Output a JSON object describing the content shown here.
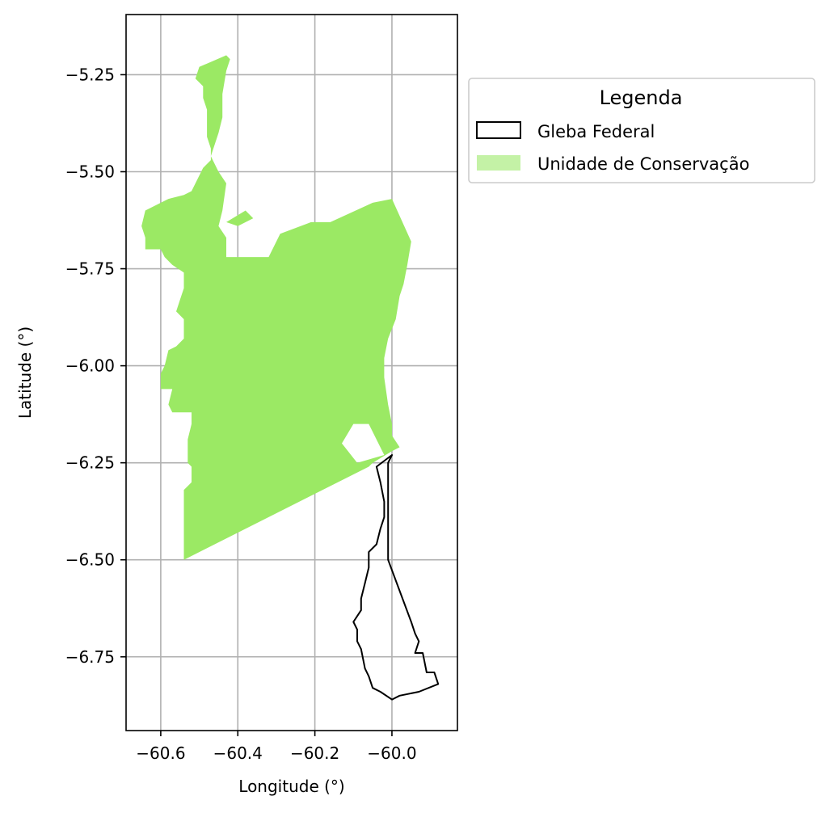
{
  "colors": {
    "uc_fill": "#9be964",
    "uc_legend_fill": "#c4f2a6",
    "gleba_stroke": "#000000",
    "grid": "#b0b0b0",
    "frame": "#000000",
    "legend_border": "#cccccc"
  },
  "chart_data": {
    "type": "map",
    "title": "",
    "xlabel": "Longitude (°)",
    "ylabel": "Latitude (°)",
    "xlim": [
      -60.69,
      -59.83
    ],
    "ylim": [
      -6.94,
      -5.095
    ],
    "grid": true,
    "x_ticks": [
      -60.6,
      -60.4,
      -60.2,
      -60.0
    ],
    "x_tick_labels": [
      "−60.6",
      "−60.4",
      "−60.2",
      "−60.0"
    ],
    "y_ticks": [
      -5.25,
      -5.5,
      -5.75,
      -6.0,
      -6.25,
      -6.5,
      -6.75
    ],
    "y_tick_labels": [
      "−5.25",
      "−5.50",
      "−5.75",
      "−6.00",
      "−6.25",
      "−6.50",
      "−6.75"
    ],
    "legend": {
      "title": "Legenda",
      "placement": "outside-upper-right",
      "entries": [
        {
          "label": "Gleba Federal",
          "style": "outline"
        },
        {
          "label": "Unidade de Conservação",
          "style": "fill"
        }
      ]
    },
    "layers": [
      {
        "name": "Unidade de Conservação",
        "style": "fill",
        "polygons": [
          [
            [
              -60.54,
              -6.5
            ],
            [
              -60.54,
              -6.32
            ],
            [
              -60.53,
              -6.31
            ],
            [
              -60.52,
              -6.3
            ],
            [
              -60.52,
              -6.26
            ],
            [
              -60.53,
              -6.25
            ],
            [
              -60.53,
              -6.19
            ],
            [
              -60.52,
              -6.15
            ],
            [
              -60.52,
              -6.12
            ],
            [
              -60.57,
              -6.12
            ],
            [
              -60.58,
              -6.1
            ],
            [
              -60.57,
              -6.06
            ],
            [
              -60.6,
              -6.06
            ],
            [
              -60.6,
              -6.02
            ],
            [
              -60.59,
              -6.0
            ],
            [
              -60.58,
              -5.96
            ],
            [
              -60.56,
              -5.95
            ],
            [
              -60.54,
              -5.93
            ],
            [
              -60.54,
              -5.88
            ],
            [
              -60.56,
              -5.86
            ],
            [
              -60.55,
              -5.83
            ],
            [
              -60.54,
              -5.8
            ],
            [
              -60.54,
              -5.76
            ],
            [
              -60.57,
              -5.74
            ],
            [
              -60.59,
              -5.72
            ],
            [
              -60.6,
              -5.7
            ],
            [
              -60.64,
              -5.7
            ],
            [
              -60.64,
              -5.67
            ],
            [
              -60.65,
              -5.64
            ],
            [
              -60.64,
              -5.6
            ],
            [
              -60.58,
              -5.57
            ],
            [
              -60.54,
              -5.56
            ],
            [
              -60.52,
              -5.55
            ],
            [
              -60.49,
              -5.49
            ],
            [
              -60.47,
              -5.47
            ],
            [
              -60.47,
              -5.44
            ],
            [
              -60.48,
              -5.41
            ],
            [
              -60.48,
              -5.38
            ],
            [
              -60.48,
              -5.34
            ],
            [
              -60.49,
              -5.31
            ],
            [
              -60.49,
              -5.28
            ],
            [
              -60.51,
              -5.26
            ],
            [
              -60.5,
              -5.23
            ],
            [
              -60.43,
              -5.2
            ],
            [
              -60.42,
              -5.21
            ],
            [
              -60.43,
              -5.24
            ],
            [
              -60.44,
              -5.3
            ],
            [
              -60.44,
              -5.36
            ],
            [
              -60.45,
              -5.4
            ],
            [
              -60.47,
              -5.46
            ],
            [
              -60.45,
              -5.5
            ],
            [
              -60.43,
              -5.53
            ],
            [
              -60.44,
              -5.6
            ],
            [
              -60.45,
              -5.64
            ],
            [
              -60.43,
              -5.67
            ],
            [
              -60.43,
              -5.72
            ],
            [
              -60.32,
              -5.72
            ],
            [
              -60.29,
              -5.66
            ],
            [
              -60.21,
              -5.63
            ],
            [
              -60.16,
              -5.63
            ],
            [
              -60.05,
              -5.58
            ],
            [
              -60.0,
              -5.57
            ],
            [
              -59.95,
              -5.68
            ],
            [
              -59.96,
              -5.74
            ],
            [
              -59.97,
              -5.79
            ],
            [
              -59.98,
              -5.82
            ],
            [
              -59.99,
              -5.88
            ],
            [
              -60.01,
              -5.93
            ],
            [
              -60.02,
              -5.98
            ],
            [
              -60.02,
              -6.03
            ],
            [
              -60.01,
              -6.1
            ],
            [
              -60.0,
              -6.15
            ],
            [
              -60.0,
              -6.18
            ],
            [
              -59.98,
              -6.21
            ],
            [
              -60.0,
              -6.22
            ],
            [
              -60.05,
              -6.25
            ],
            [
              -60.06,
              -6.26
            ],
            [
              -60.54,
              -6.5
            ]
          ],
          [
            [
              -60.02,
              -6.23
            ],
            [
              -60.06,
              -6.15
            ],
            [
              -60.1,
              -6.15
            ],
            [
              -60.13,
              -6.2
            ],
            [
              -60.09,
              -6.25
            ],
            [
              -60.02,
              -6.23
            ]
          ],
          [
            [
              -60.43,
              -5.63
            ],
            [
              -60.38,
              -5.6
            ],
            [
              -60.36,
              -5.62
            ],
            [
              -60.4,
              -5.64
            ],
            [
              -60.43,
              -5.63
            ]
          ]
        ]
      },
      {
        "name": "Gleba Federal",
        "style": "outline",
        "polygons": [
          [
            [
              -60.0,
              -6.23
            ],
            [
              -60.01,
              -6.25
            ],
            [
              -60.01,
              -6.36
            ],
            [
              -60.01,
              -6.5
            ],
            [
              -59.98,
              -6.58
            ],
            [
              -59.95,
              -6.66
            ],
            [
              -59.94,
              -6.69
            ],
            [
              -59.93,
              -6.71
            ],
            [
              -59.94,
              -6.74
            ],
            [
              -59.92,
              -6.74
            ],
            [
              -59.91,
              -6.79
            ],
            [
              -59.89,
              -6.79
            ],
            [
              -59.88,
              -6.82
            ],
            [
              -59.93,
              -6.84
            ],
            [
              -59.98,
              -6.85
            ],
            [
              -60.0,
              -6.86
            ],
            [
              -60.03,
              -6.84
            ],
            [
              -60.05,
              -6.83
            ],
            [
              -60.06,
              -6.8
            ],
            [
              -60.07,
              -6.78
            ],
            [
              -60.08,
              -6.73
            ],
            [
              -60.09,
              -6.71
            ],
            [
              -60.09,
              -6.68
            ],
            [
              -60.1,
              -6.66
            ],
            [
              -60.08,
              -6.63
            ],
            [
              -60.08,
              -6.6
            ],
            [
              -60.07,
              -6.56
            ],
            [
              -60.06,
              -6.52
            ],
            [
              -60.06,
              -6.48
            ],
            [
              -60.04,
              -6.46
            ],
            [
              -60.03,
              -6.42
            ],
            [
              -60.02,
              -6.39
            ],
            [
              -60.02,
              -6.35
            ],
            [
              -60.03,
              -6.3
            ],
            [
              -60.04,
              -6.26
            ],
            [
              -60.0,
              -6.23
            ]
          ]
        ]
      }
    ]
  }
}
